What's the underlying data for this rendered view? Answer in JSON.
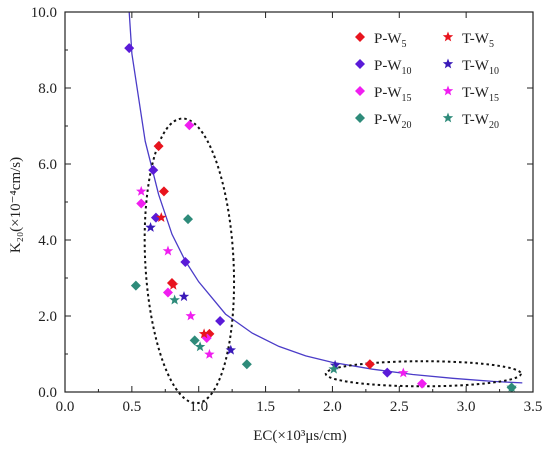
{
  "chart_data": {
    "type": "scatter",
    "xlabel": "EC(×10³μs/cm)",
    "ylabel": "K₂₀(×10⁻⁴cm/s)",
    "xlim": [
      0,
      3.5
    ],
    "ylim": [
      0,
      10
    ],
    "x_ticks": [
      "0.0",
      "0.5",
      "1.0",
      "1.5",
      "2.0",
      "2.5",
      "3.0",
      "3.5"
    ],
    "y_ticks": [
      "0.0",
      "2.0",
      "4.0",
      "6.0",
      "8.0",
      "10.0"
    ],
    "grid": false,
    "legend_position": "top-right",
    "legend_columns": 2,
    "fit_curve": {
      "color": "#4b3cc8",
      "points": [
        [
          0.48,
          10.0
        ],
        [
          0.5,
          8.9
        ],
        [
          0.6,
          6.6
        ],
        [
          0.7,
          5.2
        ],
        [
          0.8,
          4.15
        ],
        [
          0.9,
          3.45
        ],
        [
          1.0,
          2.9
        ],
        [
          1.2,
          2.05
        ],
        [
          1.4,
          1.55
        ],
        [
          1.6,
          1.2
        ],
        [
          1.8,
          0.95
        ],
        [
          2.0,
          0.78
        ],
        [
          2.3,
          0.6
        ],
        [
          2.6,
          0.46
        ],
        [
          2.9,
          0.36
        ],
        [
          3.2,
          0.28
        ],
        [
          3.42,
          0.24
        ]
      ]
    },
    "ellipses": [
      {
        "cx": 0.93,
        "cy": 3.45,
        "rx": 0.33,
        "ry": 3.75,
        "angle_deg": 3
      },
      {
        "cx": 2.68,
        "cy": 0.48,
        "rx": 0.73,
        "ry": 0.33,
        "angle_deg": 0
      }
    ],
    "series": [
      {
        "name": "P-W",
        "sub": "5",
        "marker": "diamond",
        "color": "#e8141e",
        "points": [
          [
            0.7,
            6.47
          ],
          [
            0.74,
            5.28
          ],
          [
            0.8,
            2.87
          ],
          [
            1.08,
            1.53
          ],
          [
            2.28,
            0.73
          ]
        ]
      },
      {
        "name": "P-W",
        "sub": "10",
        "marker": "diamond",
        "color": "#5a1ad8",
        "points": [
          [
            0.48,
            9.05
          ],
          [
            0.66,
            5.84
          ],
          [
            0.68,
            4.59
          ],
          [
            0.9,
            3.42
          ],
          [
            1.16,
            1.87
          ],
          [
            2.41,
            0.51
          ]
        ]
      },
      {
        "name": "P-W",
        "sub": "15",
        "marker": "diamond",
        "color": "#f01ef0",
        "points": [
          [
            0.93,
            7.02
          ],
          [
            0.57,
            4.96
          ],
          [
            0.77,
            2.62
          ],
          [
            1.06,
            1.42
          ],
          [
            2.67,
            0.22
          ]
        ]
      },
      {
        "name": "P-W",
        "sub": "20",
        "marker": "diamond",
        "color": "#2e8b7a",
        "points": [
          [
            0.53,
            2.8
          ],
          [
            0.92,
            4.55
          ],
          [
            0.97,
            1.36
          ],
          [
            1.36,
            0.73
          ],
          [
            3.34,
            0.12
          ]
        ]
      },
      {
        "name": "T-W",
        "sub": "5",
        "marker": "star",
        "color": "#e8141e",
        "points": [
          [
            0.72,
            4.59
          ],
          [
            0.81,
            2.81
          ],
          [
            1.04,
            1.53
          ]
        ]
      },
      {
        "name": "T-W",
        "sub": "10",
        "marker": "star",
        "color": "#3a1ab8",
        "points": [
          [
            0.64,
            4.33
          ],
          [
            0.89,
            2.51
          ],
          [
            1.24,
            1.1
          ],
          [
            2.02,
            0.7
          ]
        ]
      },
      {
        "name": "T-W",
        "sub": "15",
        "marker": "star",
        "color": "#f01ef0",
        "points": [
          [
            0.57,
            5.28
          ],
          [
            0.77,
            3.71
          ],
          [
            0.94,
            2.0
          ],
          [
            1.08,
            0.99
          ],
          [
            2.53,
            0.5
          ]
        ]
      },
      {
        "name": "T-W",
        "sub": "20",
        "marker": "star",
        "color": "#2e8b7a",
        "points": [
          [
            0.82,
            2.42
          ],
          [
            1.01,
            1.19
          ],
          [
            2.01,
            0.6
          ],
          [
            3.34,
            0.12
          ]
        ]
      }
    ]
  }
}
